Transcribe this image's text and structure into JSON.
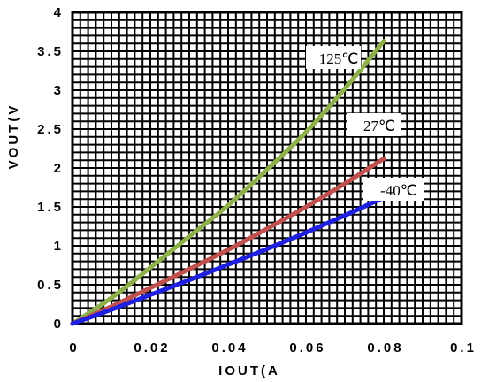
{
  "chart_data": {
    "type": "line",
    "xlabel": "IOUT(A",
    "ylabel": "VOUT(V",
    "xlim": [
      0,
      0.1
    ],
    "ylim": [
      0,
      4
    ],
    "x_ticks": [
      0,
      0.02,
      0.04,
      0.06,
      0.08,
      0.1
    ],
    "x_tick_labels": [
      "0",
      "0.02",
      "0.04",
      "0.06",
      "0.08",
      "0.1"
    ],
    "y_ticks": [
      0,
      0.5,
      1,
      1.5,
      2,
      2.5,
      3,
      3.5,
      4
    ],
    "y_tick_labels": [
      "0",
      "0.5",
      "1",
      "1.5",
      "2",
      "2.5",
      "3",
      "3.5",
      "4"
    ],
    "grid": true,
    "series": [
      {
        "name": "125℃",
        "color": "#8db04a",
        "points": [
          [
            0,
            0
          ],
          [
            0.01,
            0.33
          ],
          [
            0.02,
            0.72
          ],
          [
            0.03,
            1.12
          ],
          [
            0.04,
            1.52
          ],
          [
            0.05,
            1.98
          ],
          [
            0.06,
            2.46
          ],
          [
            0.07,
            3.02
          ],
          [
            0.08,
            3.63
          ]
        ]
      },
      {
        "name": "27℃",
        "color": "#c0504d",
        "points": [
          [
            0,
            0
          ],
          [
            0.01,
            0.22
          ],
          [
            0.02,
            0.46
          ],
          [
            0.03,
            0.7
          ],
          [
            0.04,
            0.95
          ],
          [
            0.05,
            1.22
          ],
          [
            0.06,
            1.5
          ],
          [
            0.07,
            1.8
          ],
          [
            0.08,
            2.12
          ]
        ]
      },
      {
        "name": "-40℃",
        "color": "#1f1fe0",
        "points": [
          [
            0,
            0
          ],
          [
            0.01,
            0.18
          ],
          [
            0.02,
            0.37
          ],
          [
            0.03,
            0.56
          ],
          [
            0.04,
            0.76
          ],
          [
            0.05,
            0.96
          ],
          [
            0.06,
            1.17
          ],
          [
            0.07,
            1.39
          ],
          [
            0.08,
            1.62
          ]
        ]
      }
    ]
  }
}
